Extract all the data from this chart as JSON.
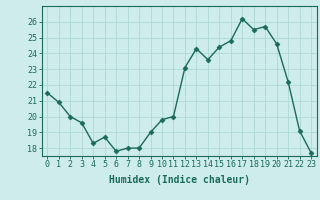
{
  "x": [
    0,
    1,
    2,
    3,
    4,
    5,
    6,
    7,
    8,
    9,
    10,
    11,
    12,
    13,
    14,
    15,
    16,
    17,
    18,
    19,
    20,
    21,
    22,
    23
  ],
  "y": [
    21.5,
    20.9,
    20.0,
    19.6,
    18.3,
    18.7,
    17.8,
    18.0,
    18.0,
    19.0,
    19.8,
    20.0,
    23.1,
    24.3,
    23.6,
    24.4,
    24.8,
    26.2,
    25.5,
    25.7,
    24.6,
    22.2,
    19.1,
    17.7
  ],
  "line_color": "#1a6b5a",
  "marker": "D",
  "markersize": 2.5,
  "bg_color": "#cdecea",
  "grid_color": "#aed8d5",
  "xlabel": "Humidex (Indice chaleur)",
  "ylim": [
    17.5,
    27.0
  ],
  "xlim": [
    -0.5,
    23.5
  ],
  "yticks": [
    18,
    19,
    20,
    21,
    22,
    23,
    24,
    25,
    26
  ],
  "xticks": [
    0,
    1,
    2,
    3,
    4,
    5,
    6,
    7,
    8,
    9,
    10,
    11,
    12,
    13,
    14,
    15,
    16,
    17,
    18,
    19,
    20,
    21,
    22,
    23
  ],
  "tick_color": "#1a6b5a",
  "label_color": "#1a6b5a",
  "tick_fontsize": 6,
  "xlabel_fontsize": 7,
  "linewidth": 1.0
}
